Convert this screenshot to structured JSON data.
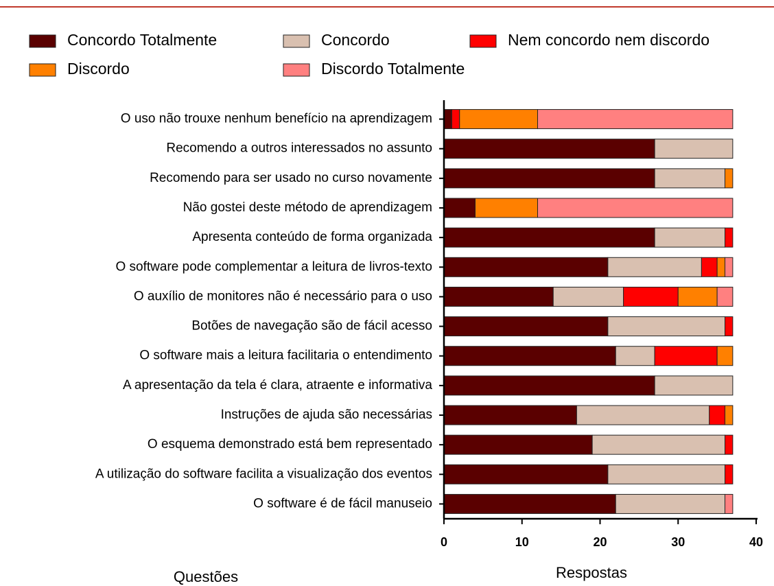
{
  "chart_data": {
    "type": "stacked-bar-horizontal",
    "categories": [
      "O uso não trouxe nenhum benefício na aprendizagem",
      "Recomendo a outros interessados no assunto",
      "Recomendo para ser usado no curso novamente",
      "Não gostei deste método de aprendizagem",
      "Apresenta conteúdo de forma organizada",
      "O software pode complementar a leitura de livros-texto",
      "O auxílio de monitores não é necessário para o uso",
      "Botões de navegação são de fácil acesso",
      "O software mais a leitura facilitaria o entendimento",
      "A apresentação da tela é clara, atraente e informativa",
      "Instruções de ajuda são necessárias",
      "O esquema demonstrado está bem representado",
      "A utilização do software facilita a visualização dos eventos",
      "O software é de fácil manuseio"
    ],
    "series": [
      {
        "name": "Concordo Totalmente",
        "color": "#5a0000",
        "values": [
          1,
          27,
          27,
          4,
          27,
          21,
          14,
          21,
          22,
          27,
          17,
          19,
          21,
          22
        ]
      },
      {
        "name": "Concordo",
        "color": "#d9c0b0",
        "values": [
          0,
          10,
          9,
          0,
          9,
          12,
          9,
          15,
          5,
          10,
          17,
          17,
          15,
          14
        ]
      },
      {
        "name": "Nem concordo nem discordo",
        "color": "#ff0000",
        "values": [
          1,
          0,
          0,
          0,
          1,
          2,
          7,
          1,
          8,
          0,
          2,
          1,
          1,
          0
        ]
      },
      {
        "name": "Discordo",
        "color": "#ff8000",
        "values": [
          10,
          0,
          1,
          8,
          0,
          1,
          5,
          0,
          2,
          0,
          1,
          0,
          0,
          0
        ]
      },
      {
        "name": "Discordo Totalmente",
        "color": "#ff8080",
        "values": [
          25,
          0,
          0,
          25,
          0,
          1,
          2,
          0,
          0,
          0,
          0,
          0,
          0,
          1
        ]
      }
    ],
    "xlim": [
      0,
      40
    ],
    "xticks": [
      0,
      10,
      20,
      30,
      40
    ],
    "xlabel": "Respostas",
    "ylabel": "Questões"
  }
}
